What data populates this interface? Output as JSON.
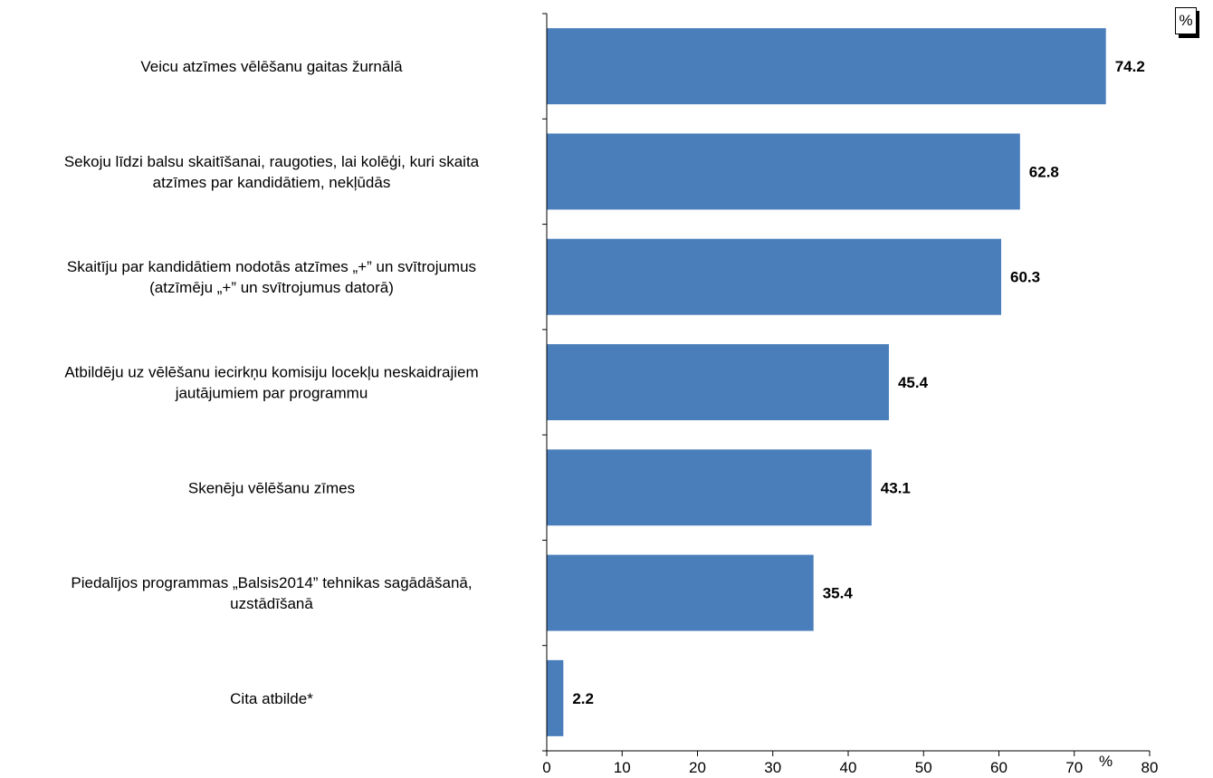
{
  "chart_data": {
    "type": "bar",
    "orientation": "horizontal",
    "categories": [
      [
        "Veicu atzīmes vēlēšanu gaitas žurnālā"
      ],
      [
        "Sekoju līdzi balsu skaitīšanai, raugoties, lai kolēģi, kuri skaita",
        "atzīmes par kandidātiem, nekļūdās"
      ],
      [
        "Skaitīju par kandidātiem nodotās atzīmes „+” un svītrojumus",
        "(atzīmēju „+” un svītrojumus datorā)"
      ],
      [
        "Atbildēju uz vēlēšanu iecirkņu komisiju locekļu neskaidrajiem",
        "jautājumiem par programmu"
      ],
      [
        "Skenēju vēlēšanu zīmes"
      ],
      [
        "Piedalījos programmas „Balsis2014” tehnikas sagādāšanā,",
        "uzstādīšanā"
      ],
      [
        "Cita atbilde*"
      ]
    ],
    "values": [
      74.2,
      62.8,
      60.3,
      45.4,
      43.1,
      35.4,
      2.2
    ],
    "value_labels": [
      "74.2",
      "62.8",
      "60.3",
      "45.4",
      "43.1",
      "35.4",
      "2.2"
    ],
    "xlim": [
      0,
      80
    ],
    "xticks": [
      "0",
      "10",
      "20",
      "30",
      "40",
      "50",
      "60",
      "70",
      "80"
    ],
    "xlabel": "%",
    "bar_color": "#4a7ebb",
    "grid": false
  },
  "unit_badge": "%"
}
